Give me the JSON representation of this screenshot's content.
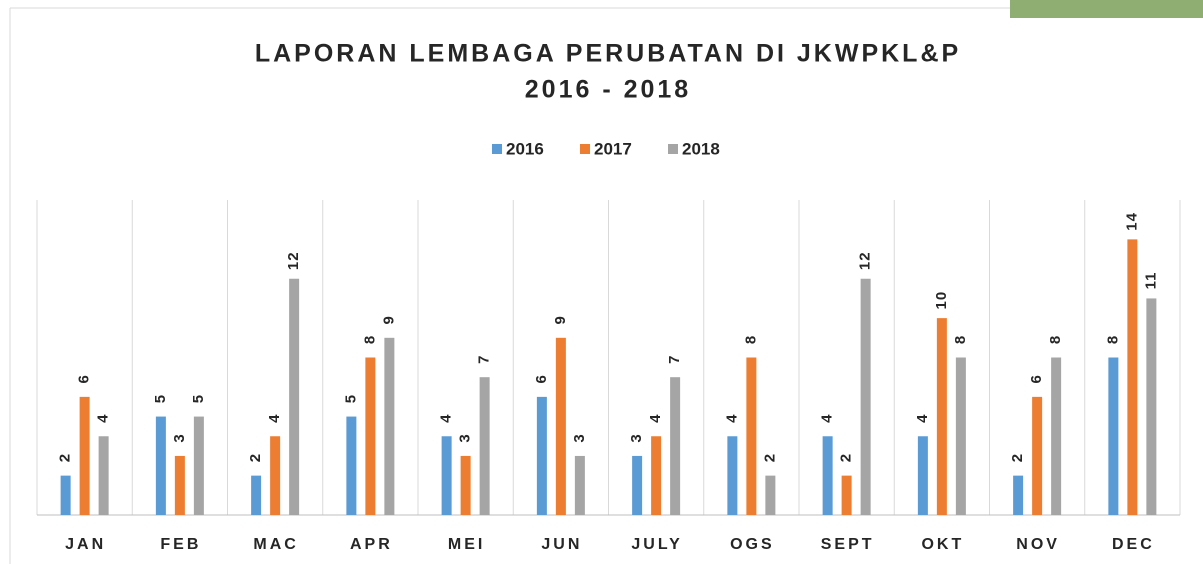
{
  "chart_data": {
    "type": "bar",
    "title": "LAPORAN LEMBAGA PERUBATAN DI JKWPKL&P",
    "subtitle": "2016 - 2018",
    "categories": [
      "JAN",
      "FEB",
      "MAC",
      "APR",
      "MEI",
      "JUN",
      "JULY",
      "OGS",
      "SEPT",
      "OKT",
      "NOV",
      "DEC"
    ],
    "series": [
      {
        "name": "2016",
        "color": "#5b9bd5",
        "values": [
          2,
          5,
          2,
          5,
          4,
          6,
          3,
          4,
          4,
          4,
          2,
          8
        ]
      },
      {
        "name": "2017",
        "color": "#ed7d31",
        "values": [
          6,
          3,
          4,
          8,
          3,
          9,
          4,
          8,
          2,
          10,
          6,
          14
        ]
      },
      {
        "name": "2018",
        "color": "#a5a5a5",
        "values": [
          4,
          5,
          12,
          9,
          7,
          3,
          7,
          2,
          12,
          8,
          8,
          11
        ]
      }
    ],
    "ylim": [
      0,
      16
    ],
    "legend": "top"
  }
}
